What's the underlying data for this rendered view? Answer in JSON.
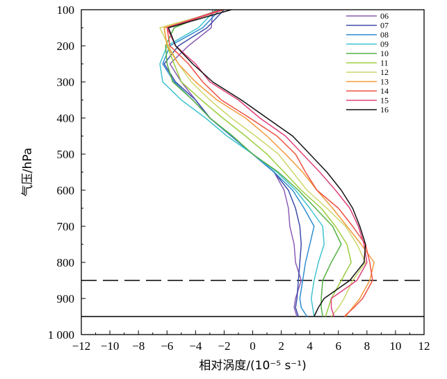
{
  "chart_data": {
    "type": "line",
    "title": "",
    "xlabel": "相对涡度/(10⁻⁵ s⁻¹)",
    "ylabel": "气压/hPa",
    "xlim": [
      -12,
      12
    ],
    "ylim": [
      1000,
      100
    ],
    "x_ticks": [
      -12,
      -10,
      -8,
      -6,
      -4,
      -2,
      0,
      2,
      4,
      6,
      8,
      10,
      12
    ],
    "x_tick_labels": [
      "−12",
      "−10",
      "−8",
      "−6",
      "−4",
      "−2",
      "0",
      "2",
      "4",
      "6",
      "8",
      "10",
      "12"
    ],
    "y_ticks": [
      100,
      200,
      300,
      400,
      500,
      600,
      700,
      800,
      900,
      1000
    ],
    "y_tick_labels": [
      "100",
      "200",
      "300",
      "400",
      "500",
      "600",
      "700",
      "800",
      "900",
      "1 000"
    ],
    "legend_position": "top-right",
    "reference_lines": [
      {
        "style": "dashed",
        "y": 850
      },
      {
        "style": "solid",
        "y": 950
      }
    ],
    "levels": [
      100,
      150,
      200,
      250,
      300,
      350,
      400,
      450,
      500,
      550,
      600,
      650,
      700,
      750,
      800,
      850,
      900,
      925,
      950
    ],
    "series": [
      {
        "name": "06",
        "color": "#8a5bb4",
        "values": [
          -2.8,
          -2.9,
          -4.5,
          -5.8,
          -5.0,
          -4.0,
          -3.0,
          -1.5,
          0,
          1.5,
          2.2,
          2.5,
          2.6,
          2.9,
          3.0,
          3.4,
          3.0,
          2.9,
          3.1
        ]
      },
      {
        "name": "07",
        "color": "#3b4aa8",
        "values": [
          -2.0,
          -3.2,
          -5.2,
          -6.2,
          -5.4,
          -4.0,
          -3.0,
          -1.5,
          0,
          1.5,
          2.5,
          3.0,
          3.3,
          3.4,
          3.3,
          3.2,
          3.1,
          3.0,
          3.2
        ]
      },
      {
        "name": "08",
        "color": "#2c8cd0",
        "values": [
          -2.3,
          -3.5,
          -5.8,
          -6.3,
          -5.5,
          -4.2,
          -3.0,
          -1.5,
          0,
          1.5,
          2.8,
          3.6,
          4.3,
          4.0,
          3.7,
          3.5,
          3.3,
          3.4,
          3.8
        ]
      },
      {
        "name": "09",
        "color": "#3fc3cf",
        "values": [
          -2.6,
          -3.8,
          -6.0,
          -6.5,
          -6.3,
          -5.0,
          -3.3,
          -1.8,
          0,
          1.7,
          3.0,
          4.0,
          4.9,
          5.0,
          4.6,
          4.3,
          4.1,
          4.2,
          4.3
        ]
      },
      {
        "name": "10",
        "color": "#55b045",
        "values": [
          -2.4,
          -5.5,
          -6.1,
          -6.0,
          -5.6,
          -4.2,
          -3.0,
          -1.4,
          0,
          1.8,
          3.2,
          4.4,
          5.6,
          6.2,
          5.5,
          4.9,
          4.8,
          4.8,
          4.9
        ]
      },
      {
        "name": "11",
        "color": "#9acd3c",
        "values": [
          -2.2,
          -6.2,
          -6.0,
          -5.5,
          -5.0,
          -3.6,
          -2.1,
          -0.5,
          1.0,
          2.2,
          3.4,
          4.8,
          5.8,
          6.6,
          6.9,
          6.2,
          5.5,
          5.3,
          5.1
        ]
      },
      {
        "name": "12",
        "color": "#cdd66a",
        "values": [
          -2.0,
          -6.5,
          -5.9,
          -5.2,
          -4.3,
          -3.0,
          -1.5,
          0.2,
          1.8,
          2.8,
          3.8,
          5.2,
          6.5,
          7.3,
          7.9,
          7.0,
          6.4,
          6.0,
          5.5
        ]
      },
      {
        "name": "13",
        "color": "#f29a3a",
        "values": [
          -2.1,
          -6.2,
          -6.0,
          -5.2,
          -4.0,
          -2.5,
          -0.5,
          1.0,
          2.3,
          3.5,
          4.5,
          5.6,
          6.6,
          7.6,
          8.5,
          8.2,
          7.5,
          7.0,
          6.5
        ]
      },
      {
        "name": "14",
        "color": "#ee5042",
        "values": [
          -2.0,
          -6.0,
          -5.8,
          -4.5,
          -3.5,
          -2.2,
          -0.2,
          1.7,
          3.0,
          3.7,
          4.5,
          6.0,
          7.0,
          7.9,
          8.2,
          8.4,
          7.7,
          7.1,
          6.4
        ]
      },
      {
        "name": "15",
        "color": "#e0407a",
        "values": [
          -2.2,
          -6.0,
          -5.4,
          -4.0,
          -3.0,
          -1.0,
          0.5,
          2.3,
          3.5,
          4.7,
          5.8,
          6.8,
          7.4,
          7.8,
          8.0,
          7.3,
          5.5,
          5.5,
          5.7
        ]
      },
      {
        "name": "16",
        "color": "#111111",
        "values": [
          -1.5,
          -5.9,
          -5.4,
          -4.2,
          -2.8,
          -0.8,
          1.0,
          2.8,
          4.0,
          5.2,
          6.2,
          7.0,
          7.5,
          7.9,
          7.8,
          6.8,
          5.0,
          4.6,
          4.3
        ]
      }
    ]
  }
}
